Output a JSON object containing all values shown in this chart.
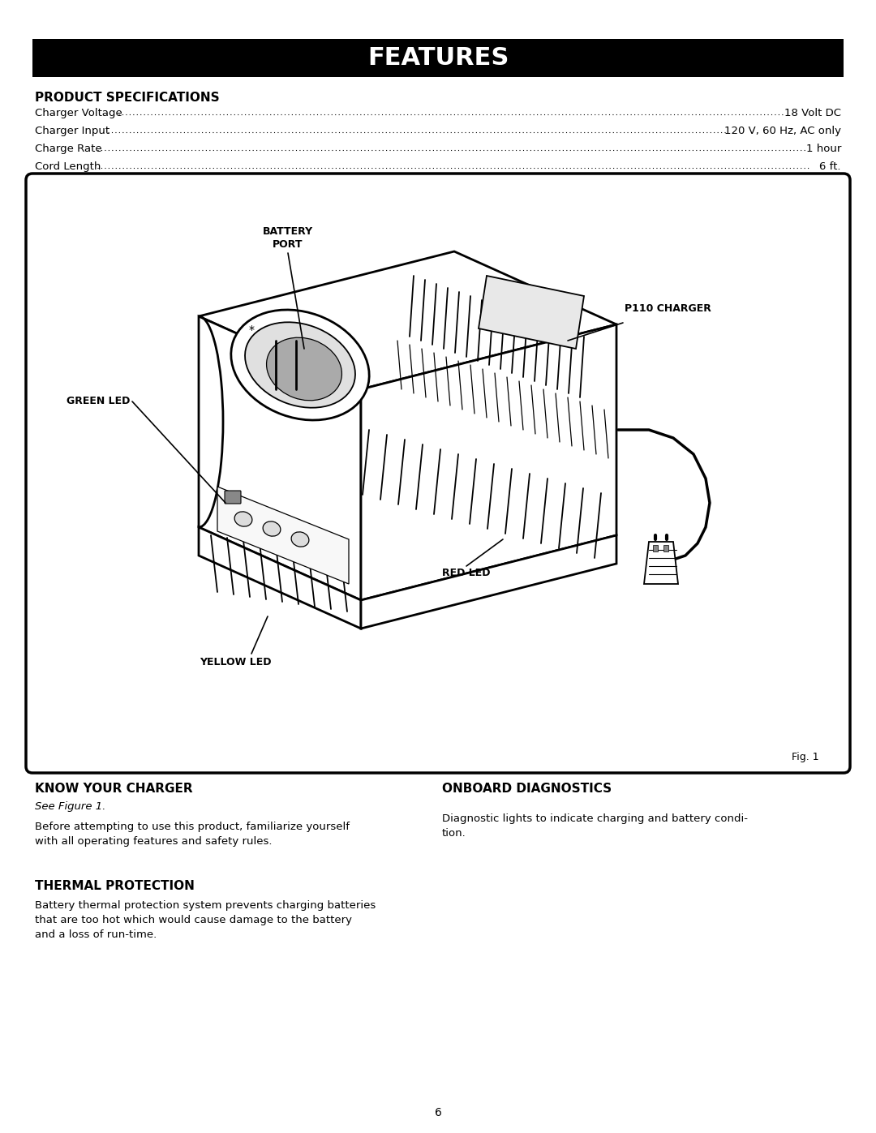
{
  "title": "FEATURES",
  "title_bg": "#000000",
  "title_color": "#ffffff",
  "page_bg": "#ffffff",
  "section1_heading": "PRODUCT SPECIFICATIONS",
  "spec_rows": [
    {
      "label": "Charger Voltage",
      "value": "18 Volt DC"
    },
    {
      "label": "Charger Input",
      "value": "120 V, 60 Hz, AC only"
    },
    {
      "label": "Charge Rate",
      "value": "1 hour"
    },
    {
      "label": "Cord Length",
      "value": "6 ft."
    }
  ],
  "fig_label": "Fig. 1",
  "kyc_heading": "KNOW YOUR CHARGER",
  "kyc_subheading": "See Figure 1.",
  "kyc_body": "Before attempting to use this product, familiarize yourself\nwith all operating features and safety rules.",
  "thermal_heading": "THERMAL PROTECTION",
  "thermal_body": "Battery thermal protection system prevents charging batteries\nthat are too hot which would cause damage to the battery\nand a loss of run-time.",
  "onboard_heading": "ONBOARD DIAGNOSTICS",
  "onboard_body": "Diagnostic lights to indicate charging and battery condi-\ntion.",
  "page_number": "6"
}
